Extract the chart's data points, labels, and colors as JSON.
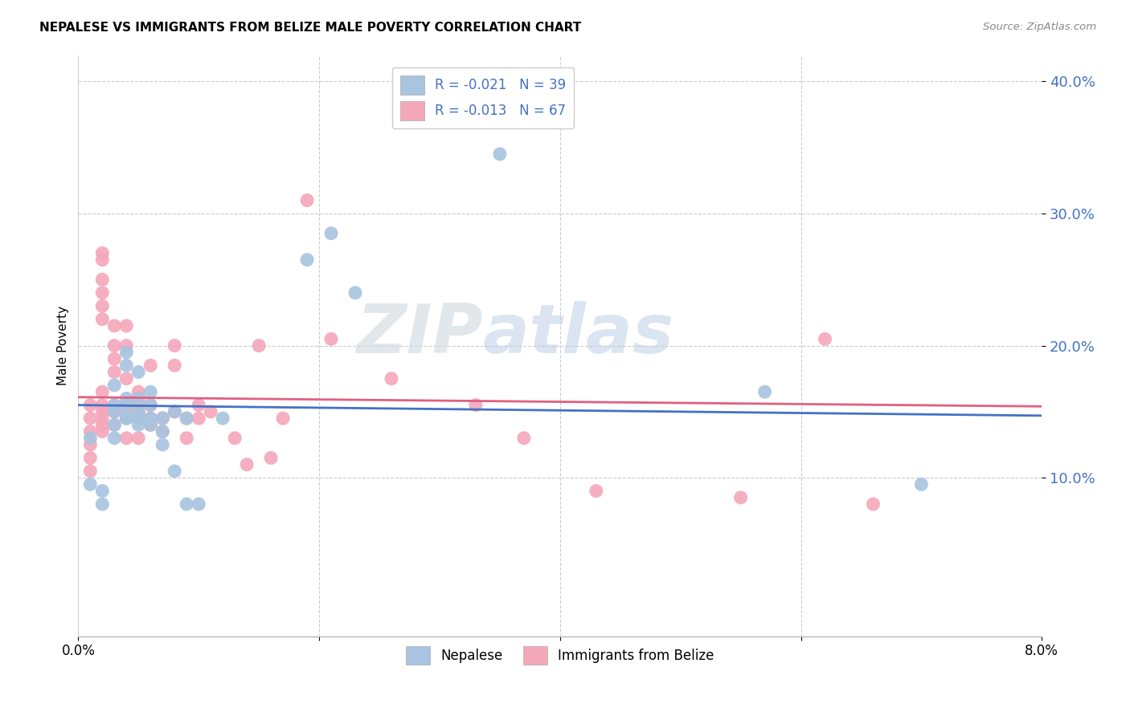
{
  "title": "NEPALESE VS IMMIGRANTS FROM BELIZE MALE POVERTY CORRELATION CHART",
  "source": "Source: ZipAtlas.com",
  "ylabel": "Male Poverty",
  "xlim": [
    0.0,
    0.08
  ],
  "ylim": [
    -0.02,
    0.42
  ],
  "legend_labels": [
    "R = -0.021   N = 39",
    "R = -0.013   N = 67"
  ],
  "bottom_legend_labels": [
    "Nepalese",
    "Immigrants from Belize"
  ],
  "watermark_zip": "ZIP",
  "watermark_atlas": "atlas",
  "nepalese_color": "#a8c4e0",
  "belize_color": "#f4a7b9",
  "nepalese_line_color": "#4472c4",
  "belize_line_color": "#e06080",
  "nepalese_scatter": [
    [
      0.001,
      0.13
    ],
    [
      0.001,
      0.095
    ],
    [
      0.002,
      0.09
    ],
    [
      0.002,
      0.08
    ],
    [
      0.003,
      0.17
    ],
    [
      0.003,
      0.15
    ],
    [
      0.003,
      0.155
    ],
    [
      0.003,
      0.14
    ],
    [
      0.003,
      0.13
    ],
    [
      0.004,
      0.195
    ],
    [
      0.004,
      0.185
    ],
    [
      0.004,
      0.16
    ],
    [
      0.004,
      0.155
    ],
    [
      0.004,
      0.145
    ],
    [
      0.004,
      0.145
    ],
    [
      0.005,
      0.18
    ],
    [
      0.005,
      0.16
    ],
    [
      0.005,
      0.15
    ],
    [
      0.005,
      0.145
    ],
    [
      0.005,
      0.14
    ],
    [
      0.006,
      0.165
    ],
    [
      0.006,
      0.155
    ],
    [
      0.006,
      0.145
    ],
    [
      0.006,
      0.14
    ],
    [
      0.007,
      0.145
    ],
    [
      0.007,
      0.135
    ],
    [
      0.007,
      0.125
    ],
    [
      0.008,
      0.15
    ],
    [
      0.008,
      0.105
    ],
    [
      0.009,
      0.145
    ],
    [
      0.009,
      0.08
    ],
    [
      0.01,
      0.08
    ],
    [
      0.012,
      0.145
    ],
    [
      0.019,
      0.265
    ],
    [
      0.021,
      0.285
    ],
    [
      0.023,
      0.24
    ],
    [
      0.035,
      0.345
    ],
    [
      0.057,
      0.165
    ],
    [
      0.07,
      0.095
    ]
  ],
  "belize_scatter": [
    [
      0.001,
      0.155
    ],
    [
      0.001,
      0.145
    ],
    [
      0.001,
      0.135
    ],
    [
      0.001,
      0.125
    ],
    [
      0.001,
      0.115
    ],
    [
      0.001,
      0.105
    ],
    [
      0.002,
      0.27
    ],
    [
      0.002,
      0.265
    ],
    [
      0.002,
      0.25
    ],
    [
      0.002,
      0.24
    ],
    [
      0.002,
      0.23
    ],
    [
      0.002,
      0.22
    ],
    [
      0.002,
      0.165
    ],
    [
      0.002,
      0.155
    ],
    [
      0.002,
      0.15
    ],
    [
      0.002,
      0.145
    ],
    [
      0.002,
      0.14
    ],
    [
      0.002,
      0.135
    ],
    [
      0.003,
      0.215
    ],
    [
      0.003,
      0.2
    ],
    [
      0.003,
      0.19
    ],
    [
      0.003,
      0.18
    ],
    [
      0.003,
      0.155
    ],
    [
      0.003,
      0.15
    ],
    [
      0.003,
      0.14
    ],
    [
      0.004,
      0.215
    ],
    [
      0.004,
      0.2
    ],
    [
      0.004,
      0.175
    ],
    [
      0.004,
      0.155
    ],
    [
      0.004,
      0.15
    ],
    [
      0.004,
      0.145
    ],
    [
      0.004,
      0.13
    ],
    [
      0.005,
      0.165
    ],
    [
      0.005,
      0.16
    ],
    [
      0.005,
      0.155
    ],
    [
      0.005,
      0.15
    ],
    [
      0.005,
      0.145
    ],
    [
      0.005,
      0.13
    ],
    [
      0.006,
      0.185
    ],
    [
      0.006,
      0.155
    ],
    [
      0.006,
      0.145
    ],
    [
      0.006,
      0.14
    ],
    [
      0.007,
      0.145
    ],
    [
      0.007,
      0.145
    ],
    [
      0.007,
      0.135
    ],
    [
      0.008,
      0.2
    ],
    [
      0.008,
      0.185
    ],
    [
      0.008,
      0.15
    ],
    [
      0.009,
      0.145
    ],
    [
      0.009,
      0.13
    ],
    [
      0.01,
      0.145
    ],
    [
      0.01,
      0.155
    ],
    [
      0.011,
      0.15
    ],
    [
      0.013,
      0.13
    ],
    [
      0.014,
      0.11
    ],
    [
      0.015,
      0.2
    ],
    [
      0.016,
      0.115
    ],
    [
      0.017,
      0.145
    ],
    [
      0.019,
      0.31
    ],
    [
      0.021,
      0.205
    ],
    [
      0.026,
      0.175
    ],
    [
      0.033,
      0.155
    ],
    [
      0.037,
      0.13
    ],
    [
      0.043,
      0.09
    ],
    [
      0.055,
      0.085
    ],
    [
      0.062,
      0.205
    ],
    [
      0.066,
      0.08
    ]
  ]
}
